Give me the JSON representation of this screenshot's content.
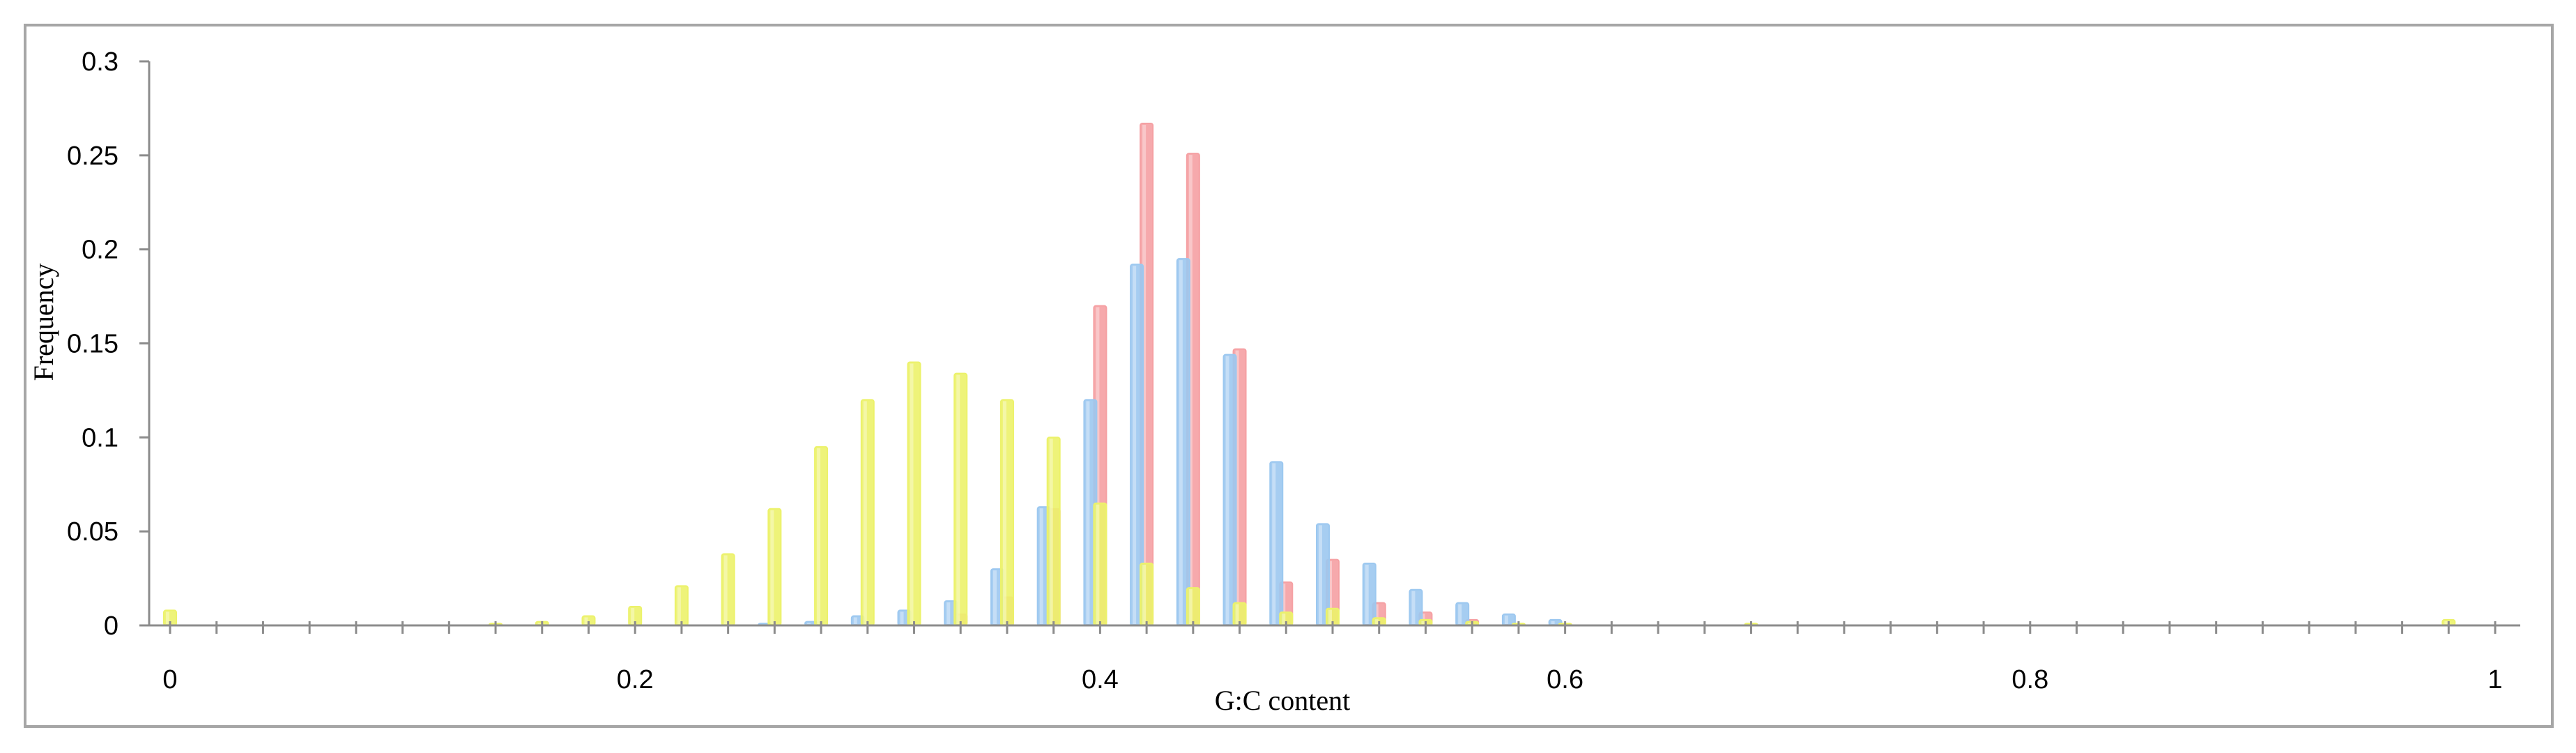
{
  "chart_data": {
    "type": "bar",
    "title": "",
    "xlabel": "G:C content",
    "ylabel": "Frequency",
    "xlim": [
      0,
      1
    ],
    "ylim": [
      0,
      0.3
    ],
    "x_ticks": [
      "0",
      "0.2",
      "0.4",
      "0.6",
      "0.8",
      "1"
    ],
    "y_ticks": [
      "0",
      "0.05",
      "0.1",
      "0.15",
      "0.2",
      "0.25",
      "0.3"
    ],
    "grid": false,
    "legend": "none",
    "series": [
      {
        "color": "#f5a0a3",
        "points": [
          [
            0.34,
            0.006
          ],
          [
            0.36,
            0.015
          ],
          [
            0.38,
            0.062
          ],
          [
            0.4,
            0.17
          ],
          [
            0.42,
            0.267
          ],
          [
            0.44,
            0.251
          ],
          [
            0.46,
            0.147
          ],
          [
            0.48,
            0.023
          ],
          [
            0.5,
            0.035
          ],
          [
            0.52,
            0.012
          ],
          [
            0.54,
            0.007
          ],
          [
            0.56,
            0.003
          ]
        ]
      },
      {
        "color": "#9cc8f0",
        "points": [
          [
            0.26,
            0.001
          ],
          [
            0.28,
            0.002
          ],
          [
            0.3,
            0.005
          ],
          [
            0.32,
            0.008
          ],
          [
            0.34,
            0.013
          ],
          [
            0.36,
            0.03
          ],
          [
            0.38,
            0.063
          ],
          [
            0.4,
            0.12
          ],
          [
            0.42,
            0.192
          ],
          [
            0.44,
            0.195
          ],
          [
            0.46,
            0.144
          ],
          [
            0.48,
            0.087
          ],
          [
            0.5,
            0.054
          ],
          [
            0.52,
            0.033
          ],
          [
            0.54,
            0.019
          ],
          [
            0.56,
            0.012
          ],
          [
            0.58,
            0.006
          ],
          [
            0.6,
            0.003
          ]
        ]
      },
      {
        "color": "#ecf26a",
        "points": [
          [
            0.0,
            0.008
          ],
          [
            0.14,
            0.001
          ],
          [
            0.16,
            0.002
          ],
          [
            0.18,
            0.005
          ],
          [
            0.2,
            0.01
          ],
          [
            0.22,
            0.021
          ],
          [
            0.24,
            0.038
          ],
          [
            0.26,
            0.062
          ],
          [
            0.28,
            0.095
          ],
          [
            0.3,
            0.12
          ],
          [
            0.32,
            0.14
          ],
          [
            0.34,
            0.134
          ],
          [
            0.36,
            0.12
          ],
          [
            0.38,
            0.1
          ],
          [
            0.4,
            0.065
          ],
          [
            0.42,
            0.033
          ],
          [
            0.44,
            0.02
          ],
          [
            0.46,
            0.012
          ],
          [
            0.48,
            0.007
          ],
          [
            0.5,
            0.009
          ],
          [
            0.52,
            0.004
          ],
          [
            0.54,
            0.003
          ],
          [
            0.56,
            0.002
          ],
          [
            0.58,
            0.001
          ],
          [
            0.6,
            0.001
          ],
          [
            0.68,
            0.001
          ],
          [
            0.98,
            0.003
          ]
        ]
      }
    ]
  }
}
